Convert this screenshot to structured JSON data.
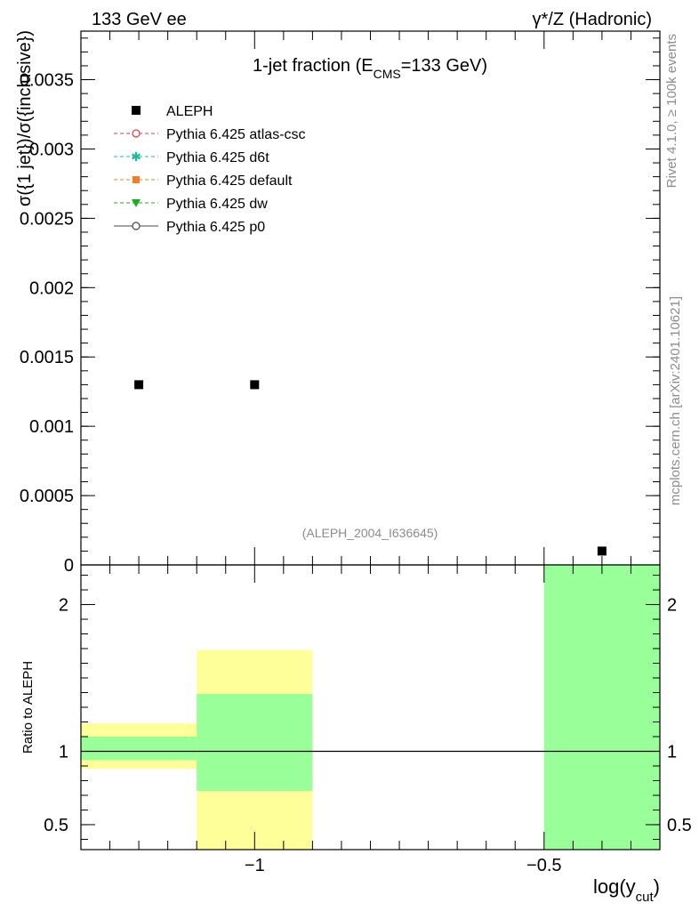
{
  "header": {
    "left": "133 GeV ee",
    "right": "γ*/Z (Hadronic)"
  },
  "side": {
    "rivet": "Rivet 4.1.0, ≥ 100k events",
    "mcplots": "mcplots.cern.ch [arXiv:2401.10621]"
  },
  "chart_data": [
    {
      "type": "scatter",
      "title": "1-jet fraction (E",
      "title_sub": "CMS",
      "title_rest": "=133 GeV)",
      "ylabel": "σ({1 jet})/σ({inclusive})",
      "analysis_id": "(ALEPH_2004_I636645)",
      "xlim": [
        -1.3,
        -0.3
      ],
      "ylim": [
        0,
        0.00385
      ],
      "yticks": [
        0,
        0.0005,
        0.001,
        0.0015,
        0.002,
        0.0025,
        0.003,
        0.0035
      ],
      "ytick_labels": [
        "0",
        "0.0005",
        "0.001",
        "0.0015",
        "0.002",
        "0.0025",
        "0.003",
        "0.0035"
      ],
      "series": [
        {
          "name": "ALEPH",
          "x": [
            -1.2,
            -1.0,
            -0.4
          ],
          "y": [
            0.0013,
            0.0013,
            0.0001
          ],
          "marker": "square",
          "color": "#000000"
        }
      ],
      "legend": [
        {
          "label": "ALEPH",
          "style": "data",
          "color": "#000000"
        },
        {
          "label": "Pythia 6.425 atlas-csc",
          "style": "open-circle",
          "color": "#e8344e"
        },
        {
          "label": "Pythia 6.425 d6t",
          "style": "star",
          "color": "#1abc9c"
        },
        {
          "label": "Pythia 6.425 default",
          "style": "square",
          "color": "#f07f28"
        },
        {
          "label": "Pythia 6.425 dw",
          "style": "triangle-down",
          "color": "#1aaf1a"
        },
        {
          "label": "Pythia 6.425 p0",
          "style": "open-circle-solid",
          "color": "#444444"
        }
      ],
      "legend_position": "top-left"
    },
    {
      "type": "bar",
      "ylabel": "Ratio to ALEPH",
      "xlabel": "log(y",
      "xlabel_sub": "cut",
      "xlabel_end": ")",
      "xlim": [
        -1.3,
        -0.3
      ],
      "ylim": [
        0.33,
        2.27
      ],
      "xticks": [
        -1.0,
        -0.5
      ],
      "xtick_labels": [
        "−1",
        "−0.5"
      ],
      "yticks": [
        0.5,
        1,
        2
      ],
      "ytick_labels": [
        "0.5",
        "1",
        "2"
      ],
      "reference_line": 1,
      "bands": [
        {
          "x0": -1.3,
          "x1": -1.1,
          "yellow": [
            0.88,
            1.19
          ],
          "green": [
            0.94,
            1.1
          ]
        },
        {
          "x0": -1.1,
          "x1": -0.9,
          "yellow": [
            0.33,
            1.69
          ],
          "green": [
            0.73,
            1.39
          ]
        },
        {
          "x0": -0.5,
          "x1": -0.3,
          "yellow": [
            0.33,
            2.27
          ],
          "green": [
            0.33,
            2.27
          ]
        }
      ],
      "colors": {
        "yellow": "#ffff99",
        "green": "#99ff99"
      }
    }
  ]
}
